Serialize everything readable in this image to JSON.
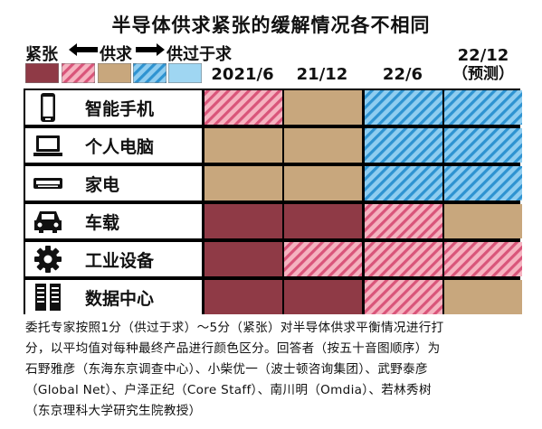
{
  "title": "半导体供求紧张的缓解情况各不相同",
  "legend": {
    "tight_label": "紧张",
    "mid_label": "供求",
    "loose_label": "供过于求",
    "levels": [
      5,
      4,
      3,
      2,
      1
    ],
    "colors": {
      "5": "#8f3a46",
      "4": "#f2a3b3",
      "3": "#c8a77d",
      "2": "#4fb3e7",
      "1": "#9fd6f2"
    }
  },
  "chart_data": {
    "type": "heatmap",
    "title": "半导体供求紧张的缓解情况各不相同",
    "x": [
      "2021/6",
      "21/12",
      "22/6",
      "22/12 (预测)"
    ],
    "x_display": [
      {
        "main": "2021/6",
        "sub": ""
      },
      {
        "main": "21/12",
        "sub": ""
      },
      {
        "main": "22/6",
        "sub": ""
      },
      {
        "main": "22/12",
        "sub": "（预测）"
      }
    ],
    "rows": [
      {
        "name": "智能手机",
        "icon": "smartphone-icon",
        "values": [
          4,
          3,
          2,
          2
        ]
      },
      {
        "name": "个人电脑",
        "icon": "laptop-icon",
        "values": [
          3,
          3,
          2,
          2
        ]
      },
      {
        "name": "家电",
        "icon": "air-conditioner-icon",
        "values": [
          3,
          3,
          2,
          2
        ]
      },
      {
        "name": "车载",
        "icon": "car-icon",
        "values": [
          5,
          5,
          4,
          3
        ]
      },
      {
        "name": "工业设备",
        "icon": "gear-icon",
        "values": [
          5,
          4,
          4,
          4
        ]
      },
      {
        "name": "数据中心",
        "icon": "server-icon",
        "values": [
          5,
          5,
          4,
          3
        ]
      }
    ],
    "scale": "1 = 供过于求 … 5 = 紧张"
  },
  "note_lines": [
    "委托专家按照1分（供过于求）～5分（紧张）对半导体供求平衡情况进行打",
    "分，以平均值对每种最终产品进行颜色区分。回答者（按五十音图顺序）为",
    "石野雅彦（东海东京调查中心）、小柴优一（波士顿咨询集团）、武野泰彦",
    "（Global Net）、户泽正纪（Core Staff）、南川明（Omdia）、若林秀树",
    "（东京理科大学研究生院教授）"
  ]
}
